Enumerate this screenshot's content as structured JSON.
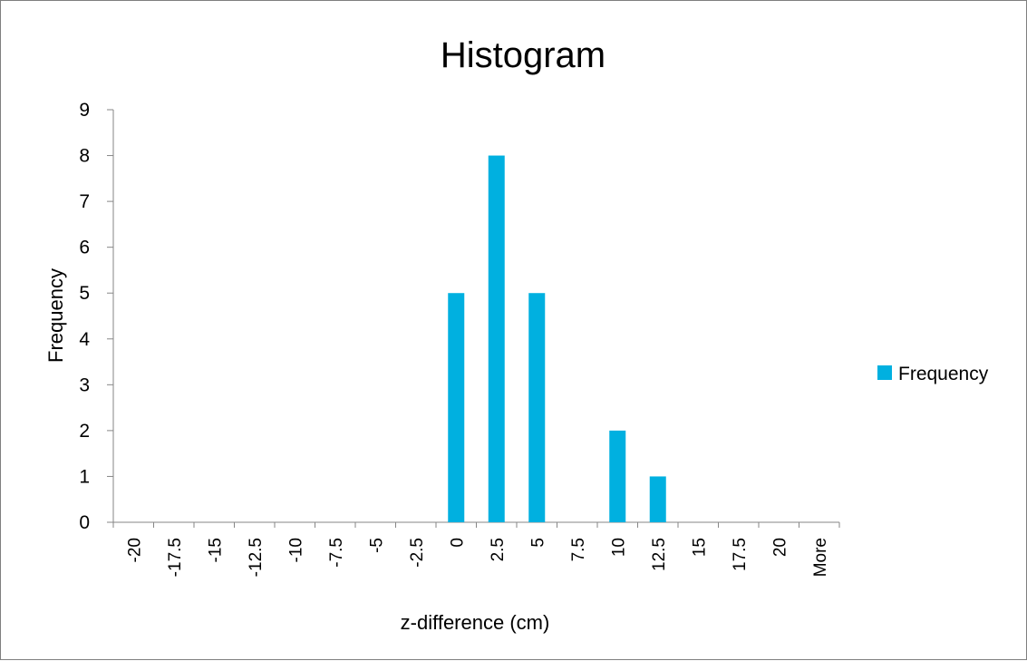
{
  "chart_data": {
    "type": "bar",
    "title": "Histogram",
    "xlabel": "z-difference (cm)",
    "ylabel": "Frequency",
    "categories": [
      "-20",
      "-17.5",
      "-15",
      "-12.5",
      "-10",
      "-7.5",
      "-5",
      "-2.5",
      "0",
      "2.5",
      "5",
      "7.5",
      "10",
      "12.5",
      "15",
      "17.5",
      "20",
      "More"
    ],
    "series": [
      {
        "name": "Frequency",
        "values": [
          0,
          0,
          0,
          0,
          0,
          0,
          0,
          0,
          5,
          8,
          5,
          0,
          2,
          1,
          0,
          0,
          0,
          0
        ]
      }
    ],
    "ylim": [
      0,
      9
    ],
    "yticks": [
      0,
      1,
      2,
      3,
      4,
      5,
      6,
      7,
      8,
      9
    ],
    "grid": false,
    "legend_position": "right",
    "bar_color": "#00b0e0"
  }
}
